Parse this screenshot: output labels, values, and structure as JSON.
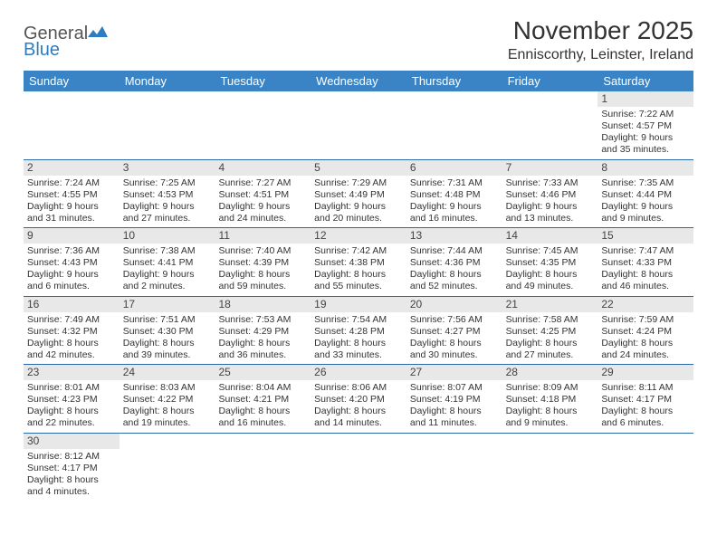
{
  "logo": {
    "word1": "General",
    "word2": "Blue"
  },
  "title": "November 2025",
  "location": "Enniscorthy, Leinster, Ireland",
  "colors": {
    "header_bg": "#3a84c5",
    "header_text": "#ffffff",
    "week_border": "#2a6aa8",
    "daynum_bg": "#e8e8e8",
    "body_text": "#333333",
    "logo_gray": "#555555",
    "logo_blue": "#2f7dc0",
    "background": "#ffffff"
  },
  "typography": {
    "title_fontsize": 28,
    "location_fontsize": 16,
    "header_fontsize": 13,
    "daynum_fontsize": 12,
    "body_fontsize": 10.5
  },
  "day_headers": [
    "Sunday",
    "Monday",
    "Tuesday",
    "Wednesday",
    "Thursday",
    "Friday",
    "Saturday"
  ],
  "weeks": [
    [
      {
        "n": "",
        "sunrise": "",
        "sunset": "",
        "daylight": ""
      },
      {
        "n": "",
        "sunrise": "",
        "sunset": "",
        "daylight": ""
      },
      {
        "n": "",
        "sunrise": "",
        "sunset": "",
        "daylight": ""
      },
      {
        "n": "",
        "sunrise": "",
        "sunset": "",
        "daylight": ""
      },
      {
        "n": "",
        "sunrise": "",
        "sunset": "",
        "daylight": ""
      },
      {
        "n": "",
        "sunrise": "",
        "sunset": "",
        "daylight": ""
      },
      {
        "n": "1",
        "sunrise": "Sunrise: 7:22 AM",
        "sunset": "Sunset: 4:57 PM",
        "daylight": "Daylight: 9 hours and 35 minutes."
      }
    ],
    [
      {
        "n": "2",
        "sunrise": "Sunrise: 7:24 AM",
        "sunset": "Sunset: 4:55 PM",
        "daylight": "Daylight: 9 hours and 31 minutes."
      },
      {
        "n": "3",
        "sunrise": "Sunrise: 7:25 AM",
        "sunset": "Sunset: 4:53 PM",
        "daylight": "Daylight: 9 hours and 27 minutes."
      },
      {
        "n": "4",
        "sunrise": "Sunrise: 7:27 AM",
        "sunset": "Sunset: 4:51 PM",
        "daylight": "Daylight: 9 hours and 24 minutes."
      },
      {
        "n": "5",
        "sunrise": "Sunrise: 7:29 AM",
        "sunset": "Sunset: 4:49 PM",
        "daylight": "Daylight: 9 hours and 20 minutes."
      },
      {
        "n": "6",
        "sunrise": "Sunrise: 7:31 AM",
        "sunset": "Sunset: 4:48 PM",
        "daylight": "Daylight: 9 hours and 16 minutes."
      },
      {
        "n": "7",
        "sunrise": "Sunrise: 7:33 AM",
        "sunset": "Sunset: 4:46 PM",
        "daylight": "Daylight: 9 hours and 13 minutes."
      },
      {
        "n": "8",
        "sunrise": "Sunrise: 7:35 AM",
        "sunset": "Sunset: 4:44 PM",
        "daylight": "Daylight: 9 hours and 9 minutes."
      }
    ],
    [
      {
        "n": "9",
        "sunrise": "Sunrise: 7:36 AM",
        "sunset": "Sunset: 4:43 PM",
        "daylight": "Daylight: 9 hours and 6 minutes."
      },
      {
        "n": "10",
        "sunrise": "Sunrise: 7:38 AM",
        "sunset": "Sunset: 4:41 PM",
        "daylight": "Daylight: 9 hours and 2 minutes."
      },
      {
        "n": "11",
        "sunrise": "Sunrise: 7:40 AM",
        "sunset": "Sunset: 4:39 PM",
        "daylight": "Daylight: 8 hours and 59 minutes."
      },
      {
        "n": "12",
        "sunrise": "Sunrise: 7:42 AM",
        "sunset": "Sunset: 4:38 PM",
        "daylight": "Daylight: 8 hours and 55 minutes."
      },
      {
        "n": "13",
        "sunrise": "Sunrise: 7:44 AM",
        "sunset": "Sunset: 4:36 PM",
        "daylight": "Daylight: 8 hours and 52 minutes."
      },
      {
        "n": "14",
        "sunrise": "Sunrise: 7:45 AM",
        "sunset": "Sunset: 4:35 PM",
        "daylight": "Daylight: 8 hours and 49 minutes."
      },
      {
        "n": "15",
        "sunrise": "Sunrise: 7:47 AM",
        "sunset": "Sunset: 4:33 PM",
        "daylight": "Daylight: 8 hours and 46 minutes."
      }
    ],
    [
      {
        "n": "16",
        "sunrise": "Sunrise: 7:49 AM",
        "sunset": "Sunset: 4:32 PM",
        "daylight": "Daylight: 8 hours and 42 minutes."
      },
      {
        "n": "17",
        "sunrise": "Sunrise: 7:51 AM",
        "sunset": "Sunset: 4:30 PM",
        "daylight": "Daylight: 8 hours and 39 minutes."
      },
      {
        "n": "18",
        "sunrise": "Sunrise: 7:53 AM",
        "sunset": "Sunset: 4:29 PM",
        "daylight": "Daylight: 8 hours and 36 minutes."
      },
      {
        "n": "19",
        "sunrise": "Sunrise: 7:54 AM",
        "sunset": "Sunset: 4:28 PM",
        "daylight": "Daylight: 8 hours and 33 minutes."
      },
      {
        "n": "20",
        "sunrise": "Sunrise: 7:56 AM",
        "sunset": "Sunset: 4:27 PM",
        "daylight": "Daylight: 8 hours and 30 minutes."
      },
      {
        "n": "21",
        "sunrise": "Sunrise: 7:58 AM",
        "sunset": "Sunset: 4:25 PM",
        "daylight": "Daylight: 8 hours and 27 minutes."
      },
      {
        "n": "22",
        "sunrise": "Sunrise: 7:59 AM",
        "sunset": "Sunset: 4:24 PM",
        "daylight": "Daylight: 8 hours and 24 minutes."
      }
    ],
    [
      {
        "n": "23",
        "sunrise": "Sunrise: 8:01 AM",
        "sunset": "Sunset: 4:23 PM",
        "daylight": "Daylight: 8 hours and 22 minutes."
      },
      {
        "n": "24",
        "sunrise": "Sunrise: 8:03 AM",
        "sunset": "Sunset: 4:22 PM",
        "daylight": "Daylight: 8 hours and 19 minutes."
      },
      {
        "n": "25",
        "sunrise": "Sunrise: 8:04 AM",
        "sunset": "Sunset: 4:21 PM",
        "daylight": "Daylight: 8 hours and 16 minutes."
      },
      {
        "n": "26",
        "sunrise": "Sunrise: 8:06 AM",
        "sunset": "Sunset: 4:20 PM",
        "daylight": "Daylight: 8 hours and 14 minutes."
      },
      {
        "n": "27",
        "sunrise": "Sunrise: 8:07 AM",
        "sunset": "Sunset: 4:19 PM",
        "daylight": "Daylight: 8 hours and 11 minutes."
      },
      {
        "n": "28",
        "sunrise": "Sunrise: 8:09 AM",
        "sunset": "Sunset: 4:18 PM",
        "daylight": "Daylight: 8 hours and 9 minutes."
      },
      {
        "n": "29",
        "sunrise": "Sunrise: 8:11 AM",
        "sunset": "Sunset: 4:17 PM",
        "daylight": "Daylight: 8 hours and 6 minutes."
      }
    ],
    [
      {
        "n": "30",
        "sunrise": "Sunrise: 8:12 AM",
        "sunset": "Sunset: 4:17 PM",
        "daylight": "Daylight: 8 hours and 4 minutes."
      },
      {
        "n": "",
        "sunrise": "",
        "sunset": "",
        "daylight": ""
      },
      {
        "n": "",
        "sunrise": "",
        "sunset": "",
        "daylight": ""
      },
      {
        "n": "",
        "sunrise": "",
        "sunset": "",
        "daylight": ""
      },
      {
        "n": "",
        "sunrise": "",
        "sunset": "",
        "daylight": ""
      },
      {
        "n": "",
        "sunrise": "",
        "sunset": "",
        "daylight": ""
      },
      {
        "n": "",
        "sunrise": "",
        "sunset": "",
        "daylight": ""
      }
    ]
  ]
}
